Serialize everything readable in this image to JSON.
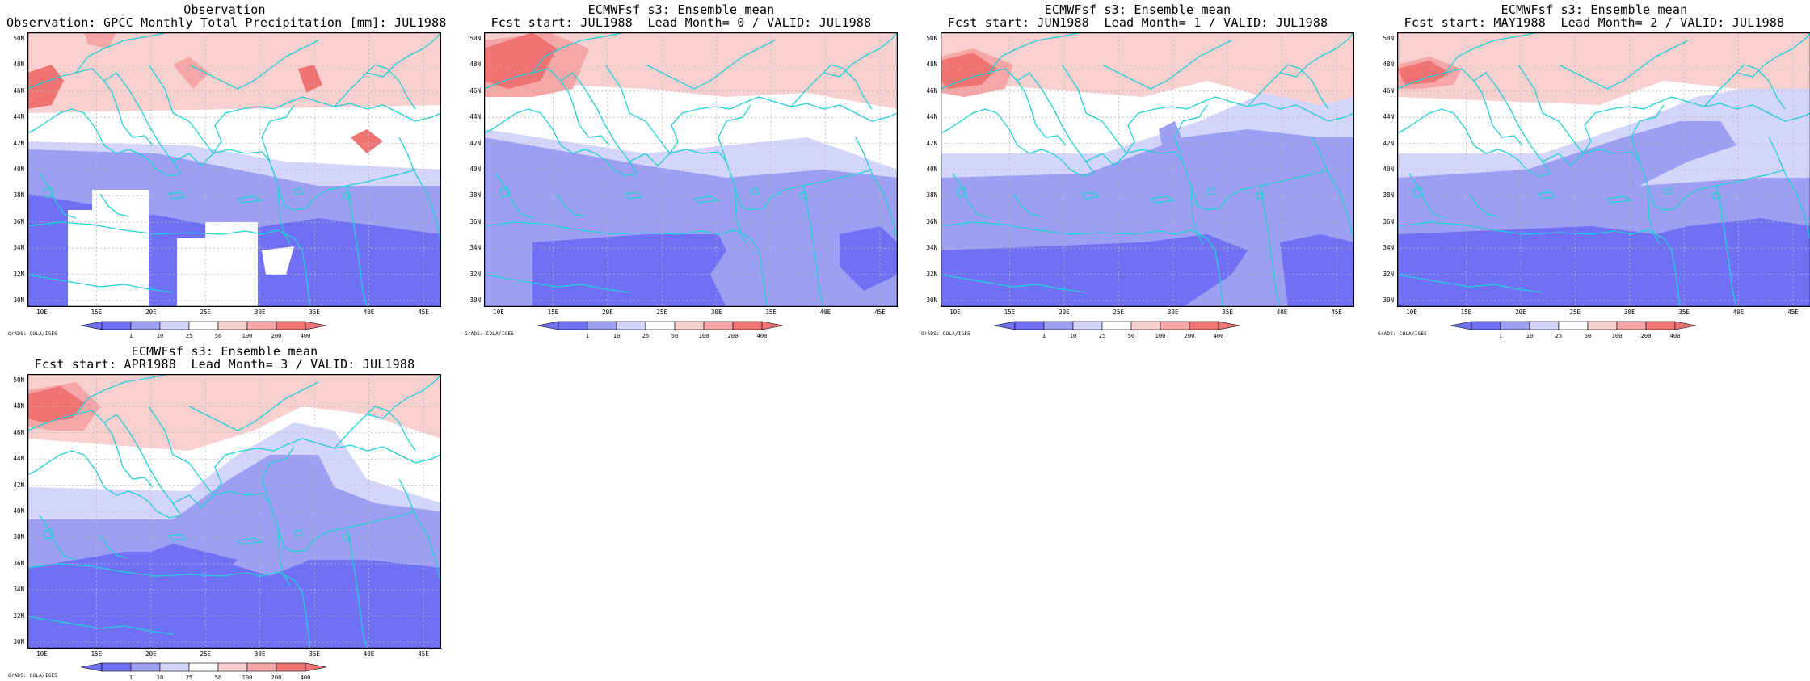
{
  "colors": {
    "deep_blue": "#7070f5",
    "mid_blue": "#9d9ff2",
    "light_blue": "#d3d6fa",
    "white": "#ffffff",
    "light_red": "#f9d0d0",
    "mid_red": "#f6a6a6",
    "deep_red": "#f07474",
    "coast": "#25cfd6",
    "grid": "#b7b7b7"
  },
  "lat_labels": [
    "50N",
    "48N",
    "46N",
    "44N",
    "42N",
    "40N",
    "38N",
    "36N",
    "34N",
    "32N",
    "30N"
  ],
  "lon_labels": [
    "10E",
    "15E",
    "20E",
    "25E",
    "30E",
    "35E",
    "40E",
    "45E"
  ],
  "colorbar_labels": [
    "1",
    "10",
    "25",
    "50",
    "100",
    "200",
    "400"
  ],
  "grads_label": "GrADS: COLA/IGES",
  "panels": [
    {
      "title1": "Observation",
      "title2": "Observation: GPCC Monthly Total Precipitation [mm]: JUL1988"
    },
    {
      "title1": "ECMWFsf s3: Ensemble mean",
      "title2": "Fcst start: JUL1988  Lead Month= 0 / VALID: JUL1988"
    },
    {
      "title1": "ECMWFsf s3: Ensemble mean",
      "title2": "Fcst start: JUN1988  Lead Month= 1 / VALID: JUL1988"
    },
    {
      "title1": "ECMWFsf s3: Ensemble mean",
      "title2": "Fcst start: MAY1988  Lead Month= 2 / VALID: JUL1988"
    },
    {
      "title1": "ECMWFsf s3: Ensemble mean",
      "title2": "Fcst start: APR1988  Lead Month= 3 / VALID: JUL1988"
    }
  ]
}
